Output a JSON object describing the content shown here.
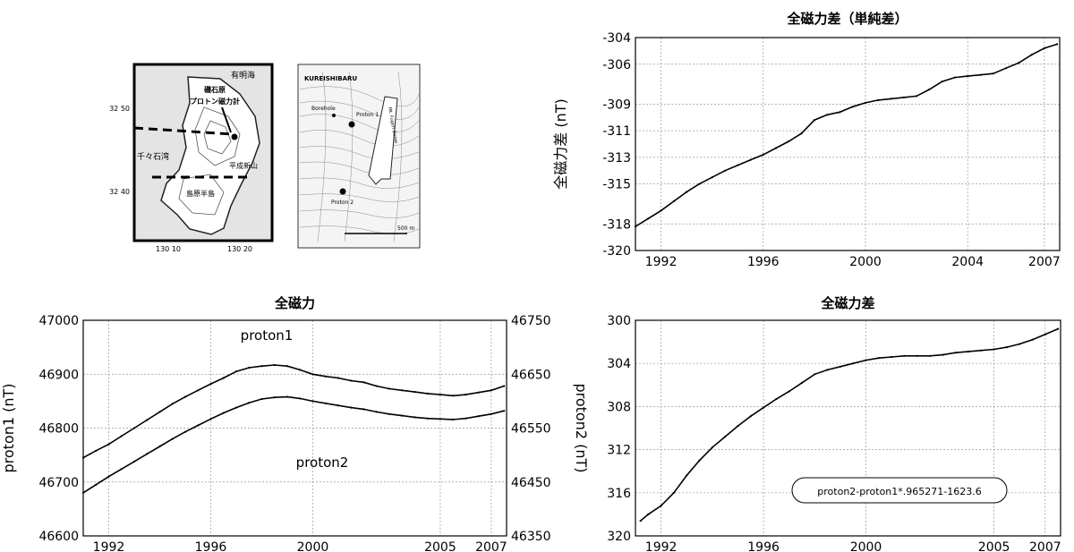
{
  "maps": {
    "left_map": {
      "labels": [
        "有明海",
        "磯石原",
        "プロトン磁力計",
        "千々石湾",
        "平成新山",
        "島原半島"
      ],
      "lat_labels": [
        "32 50",
        "32 40"
      ],
      "lon_labels": [
        "130 10",
        "130 20"
      ]
    },
    "right_map": {
      "labels": [
        "KUREISHIBARU",
        "Borehole",
        "Proton 1",
        "Proton 2",
        "Mt. Fugen Dome",
        "500 m"
      ]
    }
  },
  "chart_data": [
    {
      "id": "diff_simple",
      "type": "line",
      "title": "全磁力差（単純差）",
      "ylabel": "全磁力差 (nT)",
      "xlim": [
        1991.0,
        2007.6
      ],
      "ylim": [
        -320,
        -304
      ],
      "xticks": [
        1992,
        1996,
        2000,
        2004,
        2007
      ],
      "yticks": [
        -304,
        -306,
        -309,
        -311,
        -313,
        -315,
        -318,
        -320
      ],
      "grid": true,
      "series": [
        {
          "x": [
            1991.0,
            1991.5,
            1992.0,
            1992.5,
            1993.0,
            1993.5,
            1994.0,
            1994.5,
            1995.0,
            1995.5,
            1996.0,
            1996.5,
            1997.0,
            1997.5,
            1998.0,
            1998.5,
            1999.0,
            1999.5,
            2000.0,
            2000.5,
            2001.0,
            2001.5,
            2002.0,
            2002.5,
            2003.0,
            2003.5,
            2004.0,
            2004.5,
            2005.0,
            2005.5,
            2006.0,
            2006.5,
            2007.0,
            2007.5
          ],
          "y": [
            -318.2,
            -317.6,
            -317.0,
            -316.3,
            -315.6,
            -315.0,
            -314.5,
            -314.0,
            -313.6,
            -313.2,
            -312.8,
            -312.3,
            -311.8,
            -311.2,
            -310.2,
            -309.8,
            -309.6,
            -309.2,
            -308.9,
            -308.7,
            -308.6,
            -308.5,
            -308.4,
            -307.9,
            -307.3,
            -307.0,
            -306.9,
            -306.8,
            -306.7,
            -306.3,
            -305.9,
            -305.3,
            -304.8,
            -304.5
          ]
        }
      ]
    },
    {
      "id": "total_force",
      "type": "line",
      "title": "全磁力",
      "ylabel": "proton1 (nT)",
      "y2label": "proton2 (nT)",
      "xlim": [
        1991.0,
        2007.6
      ],
      "ylim": [
        46600,
        47000
      ],
      "y2lim": [
        46350,
        46750
      ],
      "xticks": [
        1992,
        1996,
        2000,
        2005,
        2007
      ],
      "yticks": [
        46600,
        46700,
        46800,
        46900,
        47000
      ],
      "y2ticks": [
        46350,
        46450,
        46550,
        46650,
        46750
      ],
      "grid": true,
      "annotations": [
        "proton1",
        "proton2"
      ],
      "series": [
        {
          "name": "proton1",
          "axis": "left",
          "x": [
            1991.0,
            1991.5,
            1992.0,
            1992.5,
            1993.0,
            1993.5,
            1994.0,
            1994.5,
            1995.0,
            1995.5,
            1996.0,
            1996.5,
            1997.0,
            1997.5,
            1998.0,
            1998.5,
            1999.0,
            1999.5,
            2000.0,
            2000.5,
            2001.0,
            2001.5,
            2002.0,
            2002.5,
            2003.0,
            2003.5,
            2004.0,
            2004.5,
            2005.0,
            2005.5,
            2006.0,
            2006.5,
            2007.0,
            2007.5
          ],
          "y": [
            46745,
            46758,
            46770,
            46785,
            46800,
            46815,
            46830,
            46845,
            46858,
            46870,
            46882,
            46893,
            46905,
            46912,
            46915,
            46917,
            46915,
            46908,
            46900,
            46896,
            46893,
            46888,
            46885,
            46878,
            46873,
            46870,
            46867,
            46864,
            46862,
            46860,
            46862,
            46866,
            46870,
            46878
          ]
        },
        {
          "name": "proton2",
          "axis": "right",
          "x": [
            1991.0,
            1991.5,
            1992.0,
            1992.5,
            1993.0,
            1993.5,
            1994.0,
            1994.5,
            1995.0,
            1995.5,
            1996.0,
            1996.5,
            1997.0,
            1997.5,
            1998.0,
            1998.5,
            1999.0,
            1999.5,
            2000.0,
            2000.5,
            2001.0,
            2001.5,
            2002.0,
            2002.5,
            2003.0,
            2003.5,
            2004.0,
            2004.5,
            2005.0,
            2005.5,
            2006.0,
            2006.5,
            2007.0,
            2007.5
          ],
          "y": [
            46430,
            46445,
            46460,
            46474,
            46488,
            46502,
            46516,
            46530,
            46543,
            46555,
            46567,
            46578,
            46588,
            46597,
            46604,
            46607,
            46608,
            46605,
            46600,
            46596,
            46592,
            46588,
            46585,
            46580,
            46576,
            46573,
            46570,
            46568,
            46567,
            46566,
            46568,
            46572,
            46576,
            46582
          ]
        }
      ]
    },
    {
      "id": "diff_reg",
      "type": "line",
      "title": "全磁力差",
      "xlim": [
        1991.0,
        2007.6
      ],
      "ylim": [
        320,
        300
      ],
      "xticks": [
        1992,
        1996,
        2000,
        2005,
        2007
      ],
      "yticks": [
        300,
        304,
        308,
        312,
        316,
        320
      ],
      "grid": true,
      "annotations": [
        "proton2-proton1*.965271-1623.6"
      ],
      "series": [
        {
          "x": [
            1991.2,
            1991.5,
            1992.0,
            1992.5,
            1993.0,
            1993.5,
            1994.0,
            1994.5,
            1995.0,
            1995.5,
            1996.0,
            1996.5,
            1997.0,
            1997.5,
            1998.0,
            1998.5,
            1999.0,
            1999.5,
            2000.0,
            2000.5,
            2001.0,
            2001.5,
            2002.0,
            2002.5,
            2003.0,
            2003.5,
            2004.0,
            2004.5,
            2005.0,
            2005.5,
            2006.0,
            2006.5,
            2007.0,
            2007.5
          ],
          "y": [
            318.6,
            318.0,
            317.2,
            316.0,
            314.4,
            313.0,
            311.8,
            310.8,
            309.8,
            308.9,
            308.1,
            307.3,
            306.6,
            305.8,
            305.0,
            304.6,
            304.3,
            304.0,
            303.7,
            303.5,
            303.4,
            303.3,
            303.3,
            303.3,
            303.2,
            303.0,
            302.9,
            302.8,
            302.7,
            302.5,
            302.2,
            301.8,
            301.3,
            300.8
          ]
        }
      ]
    }
  ]
}
